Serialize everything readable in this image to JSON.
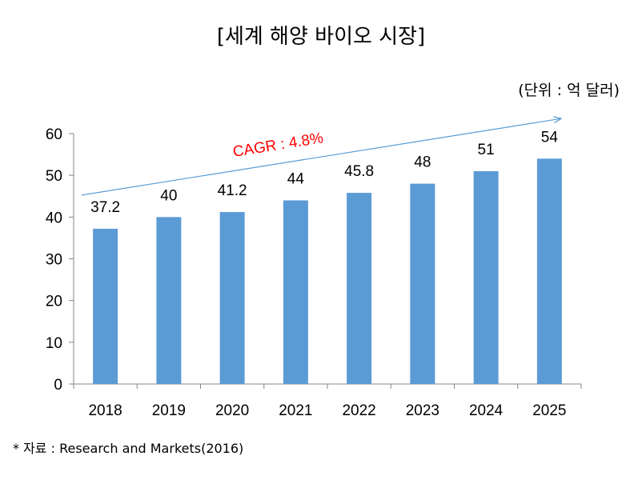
{
  "chart_data": {
    "type": "bar",
    "title": "[세계 해양 바이오 시장]",
    "unit": "(단위 : 억 달러)",
    "categories": [
      "2018",
      "2019",
      "2020",
      "2021",
      "2022",
      "2023",
      "2024",
      "2025"
    ],
    "values": [
      37.2,
      40,
      41.2,
      44,
      45.8,
      48,
      51,
      54
    ],
    "value_labels": [
      "37.2",
      "40",
      "41.2",
      "44",
      "45.8",
      "48",
      "51",
      "54"
    ],
    "yticks": [
      "0",
      "10",
      "20",
      "30",
      "40",
      "50",
      "60"
    ],
    "ylim": [
      0,
      60
    ],
    "grid": false,
    "legend": "none",
    "annotation": "CAGR : 4.8%",
    "source": "* 자료 : Research and Markets(2016)",
    "colors": {
      "bar": "#5b9bd5",
      "trend_arrow": "#5b9bd5",
      "annotation": "#ff0000",
      "axis": "#868686"
    }
  }
}
